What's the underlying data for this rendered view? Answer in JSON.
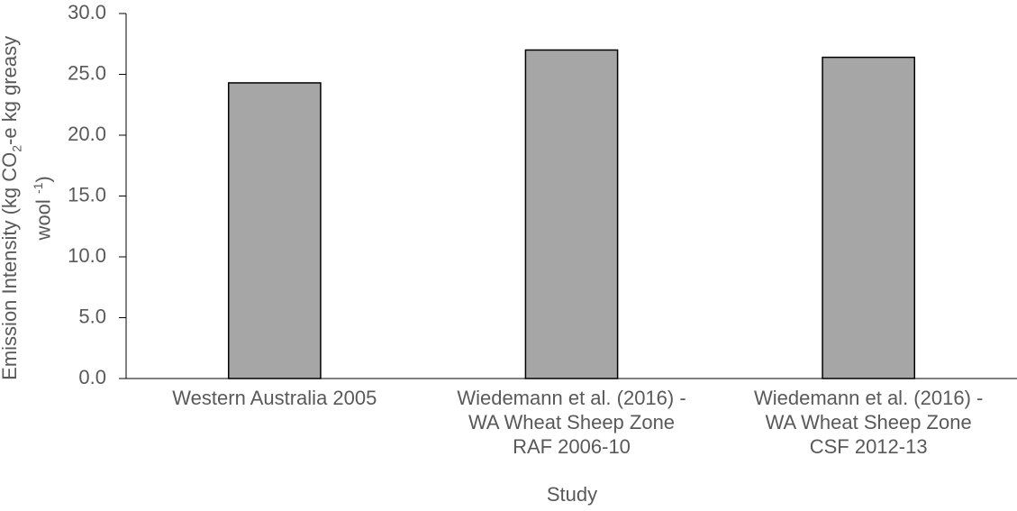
{
  "chart_data": {
    "type": "bar",
    "x_label": "Study",
    "y_label": {
      "line1": [
        "Emission Intensity (kg CO",
        "2",
        "-e kg greasy"
      ],
      "line2": [
        "wool ",
        "-1",
        ")"
      ]
    },
    "categories": [
      "Western Australia 2005",
      "Wiedemann et al. (2016) -\nWA Wheat Sheep Zone\nRAF 2006-10",
      "Wiedemann et al. (2016) -\nWA Wheat Sheep Zone\nCSF 2012-13"
    ],
    "values": [
      24.3,
      27.0,
      26.4
    ],
    "color": "#a6a6a6",
    "ylim": [
      0,
      30
    ],
    "yticks": [
      {
        "value": 0,
        "label": "0.0"
      },
      {
        "value": 5,
        "label": "5.0"
      },
      {
        "value": 10,
        "label": "10.0"
      },
      {
        "value": 15,
        "label": "15.0"
      },
      {
        "value": 20,
        "label": "20.0"
      },
      {
        "value": 25,
        "label": "25.0"
      },
      {
        "value": 30,
        "label": "30.0"
      }
    ],
    "grid": false
  }
}
